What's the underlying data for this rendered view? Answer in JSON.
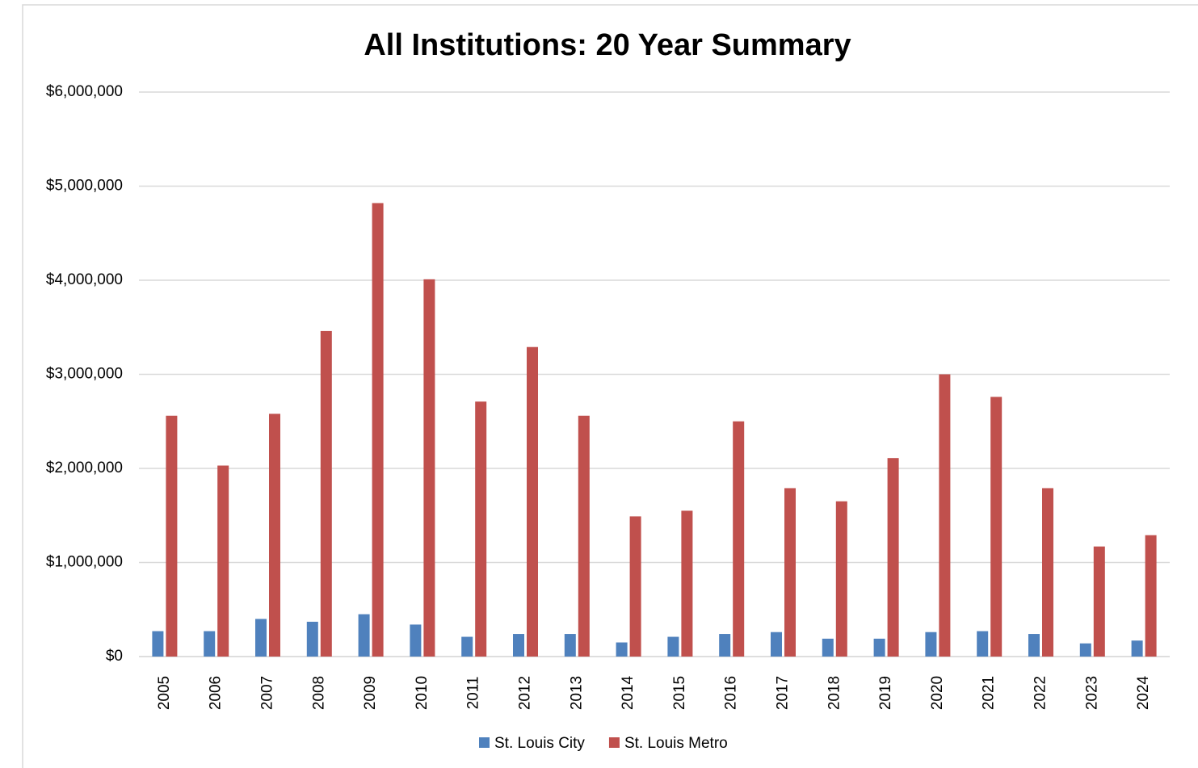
{
  "chart_data": {
    "type": "bar",
    "title": "All Institutions: 20 Year Summary",
    "categories": [
      "2005",
      "2006",
      "2007",
      "2008",
      "2009",
      "2010",
      "2011",
      "2012",
      "2013",
      "2014",
      "2015",
      "2016",
      "2017",
      "2018",
      "2019",
      "2020",
      "2021",
      "2022",
      "2023",
      "2024"
    ],
    "series": [
      {
        "name": "St. Louis City",
        "color": "#4f81bd",
        "values": [
          270000,
          270000,
          400000,
          370000,
          450000,
          340000,
          210000,
          240000,
          240000,
          150000,
          210000,
          240000,
          260000,
          190000,
          190000,
          260000,
          270000,
          240000,
          140000,
          170000
        ]
      },
      {
        "name": "St. Louis Metro",
        "color": "#c0504d",
        "values": [
          2560000,
          2030000,
          2580000,
          3460000,
          4820000,
          4010000,
          2710000,
          3290000,
          2560000,
          1490000,
          1550000,
          2500000,
          1790000,
          1650000,
          2110000,
          3000000,
          2760000,
          1790000,
          1170000,
          1290000
        ]
      }
    ],
    "ylim": [
      0,
      6000000
    ],
    "yticks": [
      {
        "value": 0,
        "label": "$0"
      },
      {
        "value": 1000000,
        "label": "$1,000,000"
      },
      {
        "value": 2000000,
        "label": "$2,000,000"
      },
      {
        "value": 3000000,
        "label": "$3,000,000"
      },
      {
        "value": 4000000,
        "label": "$4,000,000"
      },
      {
        "value": 5000000,
        "label": "$5,000,000"
      },
      {
        "value": 6000000,
        "label": "$6,000,000"
      }
    ],
    "grid": true,
    "legend": "bottom"
  }
}
